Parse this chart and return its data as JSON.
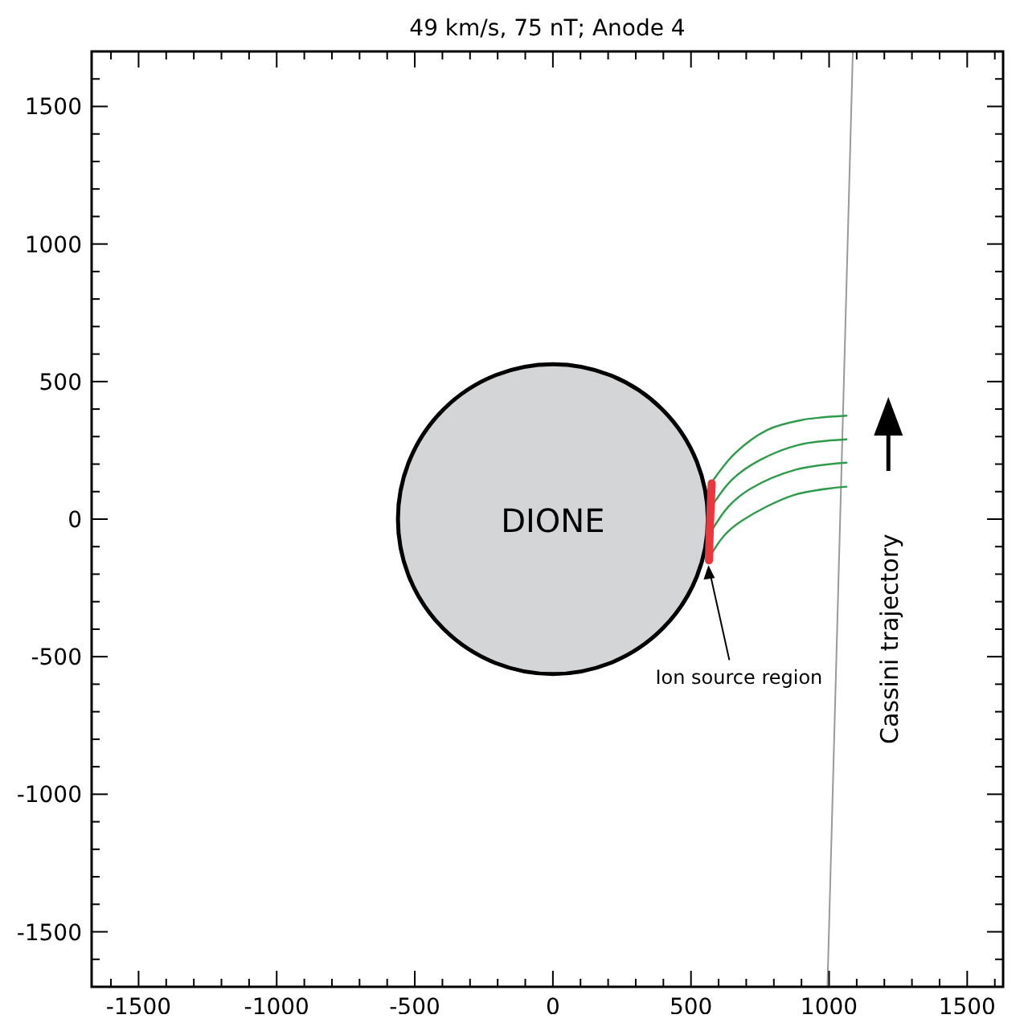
{
  "chart_data": {
    "type": "line",
    "title": "49 km/s, 75 nT; Anode 4",
    "xlim": [
      -1670,
      1630
    ],
    "ylim": [
      -1700,
      1700
    ],
    "xticks": [
      {
        "value": -1600,
        "label": null
      },
      -1500,
      {
        "value": -1400,
        "label": null
      },
      {
        "value": -1300,
        "label": null
      },
      {
        "value": -1200,
        "label": null
      },
      {
        "value": -1100,
        "label": null
      },
      -1000,
      {
        "value": -900,
        "label": null
      },
      {
        "value": -800,
        "label": null
      },
      {
        "value": -700,
        "label": null
      },
      {
        "value": -600,
        "label": null
      },
      -500,
      {
        "value": -400,
        "label": null
      },
      {
        "value": -300,
        "label": null
      },
      {
        "value": -200,
        "label": null
      },
      {
        "value": -100,
        "label": null
      },
      0,
      {
        "value": 100,
        "label": null
      },
      {
        "value": 200,
        "label": null
      },
      {
        "value": 300,
        "label": null
      },
      {
        "value": 400,
        "label": null
      },
      500,
      {
        "value": 600,
        "label": null
      },
      {
        "value": 700,
        "label": null
      },
      {
        "value": 800,
        "label": null
      },
      {
        "value": 900,
        "label": null
      },
      1000,
      {
        "value": 1100,
        "label": null
      },
      {
        "value": 1200,
        "label": null
      },
      {
        "value": 1300,
        "label": null
      },
      {
        "value": 1400,
        "label": null
      },
      1500,
      {
        "value": 1600,
        "label": null
      }
    ],
    "yticks": [
      {
        "value": -1600,
        "label": null
      },
      -1500,
      {
        "value": -1400,
        "label": null
      },
      {
        "value": -1300,
        "label": null
      },
      {
        "value": -1200,
        "label": null
      },
      {
        "value": -1100,
        "label": null
      },
      -1000,
      {
        "value": -900,
        "label": null
      },
      {
        "value": -800,
        "label": null
      },
      {
        "value": -700,
        "label": null
      },
      {
        "value": -600,
        "label": null
      },
      -500,
      {
        "value": -400,
        "label": null
      },
      {
        "value": -300,
        "label": null
      },
      {
        "value": -200,
        "label": null
      },
      {
        "value": -100,
        "label": null
      },
      0,
      {
        "value": 100,
        "label": null
      },
      {
        "value": 200,
        "label": null
      },
      {
        "value": 300,
        "label": null
      },
      {
        "value": 400,
        "label": null
      },
      500,
      {
        "value": 600,
        "label": null
      },
      {
        "value": 700,
        "label": null
      },
      {
        "value": 800,
        "label": null
      },
      {
        "value": 900,
        "label": null
      },
      1000,
      {
        "value": 1100,
        "label": null
      },
      {
        "value": 1200,
        "label": null
      },
      {
        "value": 1300,
        "label": null
      },
      {
        "value": 1400,
        "label": null
      },
      1500,
      {
        "value": 1600,
        "label": null
      }
    ],
    "grid": false,
    "marker": "none",
    "line_style": "solid",
    "series": [
      {
        "color": "#999999",
        "x": [
          994,
          1086
        ],
        "values": [
          -1700,
          1700
        ]
      },
      {
        "color": "#2e9b4a",
        "x": [
          580,
          660,
          776,
          900,
          1063
        ],
        "values": [
          141,
          240,
          324,
          360,
          376
        ]
      },
      {
        "color": "#2e9b4a",
        "x": [
          577,
          650,
          750,
          890,
          1063
        ],
        "values": [
          50,
          145,
          215,
          270,
          290
        ]
      },
      {
        "color": "#2e9b4a",
        "x": [
          573,
          635,
          715,
          880,
          1063
        ],
        "values": [
          -45,
          45,
          110,
          180,
          205
        ]
      },
      {
        "color": "#2e9b4a",
        "x": [
          569,
          620,
          684,
          874,
          1063
        ],
        "values": [
          -135,
          -60,
          -6,
          88,
          118
        ]
      },
      {
        "color": "#e8383d",
        "x": [
          565,
          569,
          575
        ],
        "values": [
          -150,
          -10,
          130
        ]
      }
    ],
    "annotations": [
      "DIONE",
      "Ion source region",
      "Cassini trajectory"
    ]
  }
}
